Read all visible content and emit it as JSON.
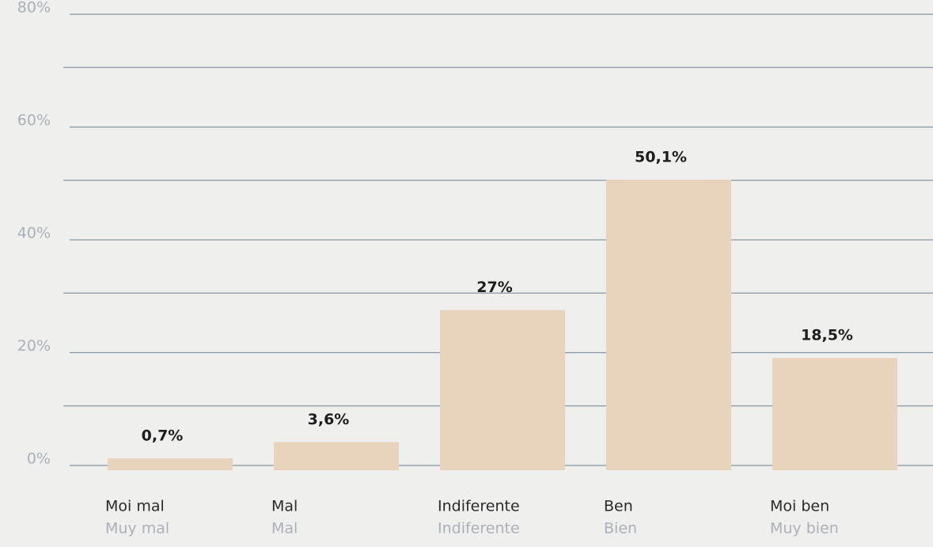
{
  "chart_data": {
    "type": "bar",
    "categories": [
      "Moi mal",
      "Mal",
      "Indiferente",
      "Ben",
      "Moi ben"
    ],
    "category_translations": [
      "Muy mal",
      "Mal",
      "Indiferente",
      "Bien",
      "Muy bien"
    ],
    "values": [
      0.7,
      3.6,
      27,
      50.1,
      18.5
    ],
    "value_labels": [
      "0,7%",
      "3,6%",
      "27%",
      "50,1%",
      "18,5%"
    ],
    "color": "#e8d4bd",
    "ylim": [
      0,
      80
    ],
    "yticks": [
      {
        "value": 0,
        "label": "0%"
      },
      {
        "value": 20,
        "label": "20%"
      },
      {
        "value": 40,
        "label": "40%"
      },
      {
        "value": 60,
        "label": "60%"
      },
      {
        "value": 80,
        "label": "80%"
      }
    ],
    "minor_yticks": [
      10,
      30,
      50,
      70
    ],
    "grid": true
  }
}
